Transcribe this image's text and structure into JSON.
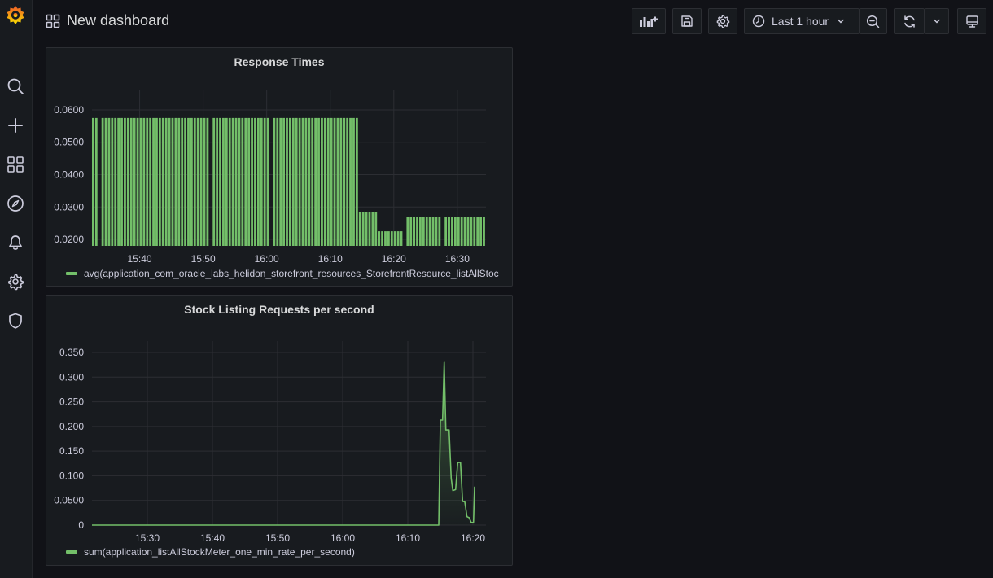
{
  "header": {
    "title": "New dashboard",
    "time_range": "Last 1 hour"
  },
  "sidebar": {
    "items": [
      {
        "icon": "grafana-logo-icon"
      },
      {
        "icon": "search-icon"
      },
      {
        "icon": "plus-icon"
      },
      {
        "icon": "dashboards-grid-icon"
      },
      {
        "icon": "compass-icon"
      },
      {
        "icon": "bell-icon"
      },
      {
        "icon": "gear-icon"
      },
      {
        "icon": "shield-icon"
      }
    ]
  },
  "toolbar": {
    "buttons": [
      "add-panel-icon",
      "save-icon",
      "gear-icon",
      "clock-icon",
      "chevron-down-icon",
      "zoom-out-icon",
      "refresh-icon",
      "chevron-down-icon",
      "tv-icon"
    ]
  },
  "colors": {
    "series": "#73bf69",
    "background": "#111217",
    "panel": "#181b1f",
    "grid": "#2c2e33"
  },
  "panels": [
    {
      "title": "Response Times",
      "legend": "avg(application_com_oracle_labs_helidon_storefront_resources_StorefrontResource_listAllStoc"
    },
    {
      "title": "Stock Listing Requests per second",
      "legend": "sum(application_listAllStockMeter_one_min_rate_per_second)"
    }
  ],
  "chart_data": [
    {
      "type": "bar",
      "title": "Response Times",
      "x_unit": "time (HH:MM)",
      "xlim": [
        "15:32:30",
        "16:34:30"
      ],
      "ylim": [
        0.018,
        0.0625
      ],
      "y_ticks": [
        "0.0600",
        "0.0500",
        "0.0400",
        "0.0300",
        "0.0200"
      ],
      "y_tick_values": [
        0.06,
        0.05,
        0.04,
        0.03,
        0.02
      ],
      "x_ticks": [
        "15:40",
        "15:50",
        "16:00",
        "16:10",
        "16:20",
        "16:30"
      ],
      "series": [
        {
          "name": "avg(application_com_oracle_labs_helidon_storefront_resources_StorefrontResource_listAllStoc",
          "segments": [
            {
              "from": "15:32:30",
              "to": "16:14:30",
              "value": 0.0575
            },
            {
              "from": "16:14:30",
              "to": "16:17:30",
              "value": 0.0285
            },
            {
              "from": "16:17:30",
              "to": "16:21:30",
              "value": 0.0225
            },
            {
              "from": "16:21:30",
              "to": "16:34:30",
              "value": 0.027
            }
          ],
          "gaps": [
            "15:33:30",
            "15:51:00",
            "16:00:30",
            "16:21:30",
            "16:27:30"
          ]
        }
      ],
      "grid": true,
      "legend": "bottom-left"
    },
    {
      "type": "area",
      "title": "Stock Listing Requests per second",
      "x_unit": "time (HH:MM)",
      "xlim": [
        "15:21:30",
        "16:22:00"
      ],
      "ylim": [
        0,
        0.35
      ],
      "y_ticks": [
        "0.350",
        "0.300",
        "0.250",
        "0.200",
        "0.150",
        "0.100",
        "0.0500",
        "0"
      ],
      "y_tick_values": [
        0.35,
        0.3,
        0.25,
        0.2,
        0.15,
        0.1,
        0.05,
        0
      ],
      "x_ticks": [
        "15:30",
        "15:40",
        "15:50",
        "16:00",
        "16:10",
        "16:20"
      ],
      "series": [
        {
          "name": "sum(application_listAllStockMeter_one_min_rate_per_second)",
          "points": [
            [
              "15:21:30",
              0
            ],
            [
              "16:14:45",
              0
            ],
            [
              "16:15:00",
              0.213
            ],
            [
              "16:15:20",
              0.213
            ],
            [
              "16:15:35",
              0.33
            ],
            [
              "16:15:50",
              0.193
            ],
            [
              "16:16:20",
              0.193
            ],
            [
              "16:16:40",
              0.095
            ],
            [
              "16:16:55",
              0.07
            ],
            [
              "16:17:20",
              0.072
            ],
            [
              "16:17:40",
              0.127
            ],
            [
              "16:18:05",
              0.127
            ],
            [
              "16:18:25",
              0.048
            ],
            [
              "16:18:45",
              0.047
            ],
            [
              "16:19:05",
              0.017
            ],
            [
              "16:19:25",
              0.015
            ],
            [
              "16:19:45",
              0.005
            ],
            [
              "16:20:05",
              0.006
            ],
            [
              "16:20:15",
              0.078
            ]
          ]
        }
      ],
      "grid": true,
      "legend": "bottom-left"
    }
  ]
}
